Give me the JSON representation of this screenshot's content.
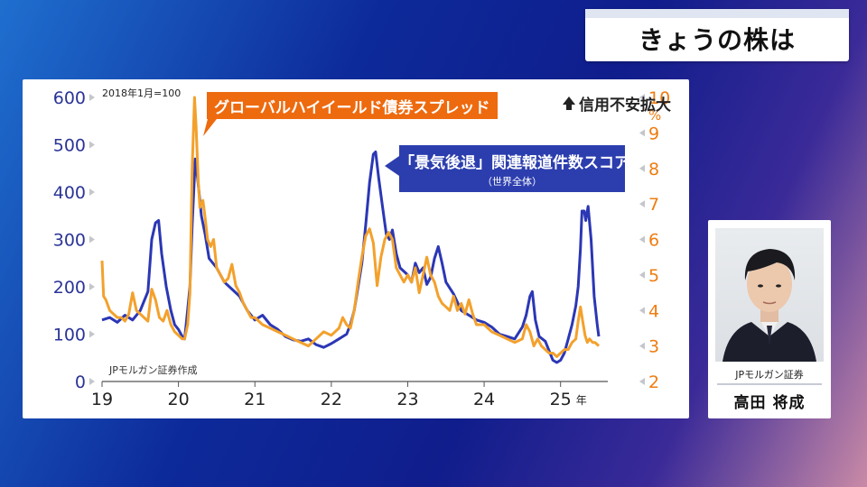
{
  "header": {
    "title": "きょうの株は"
  },
  "chart_labels": {
    "orange_series": "グローバルハイイールド債券スプレッド",
    "blue_series_line1": "「景気後退」関連報道件数スコア",
    "blue_series_line2": "（世界全体）",
    "right_axis_note": "信用不安拡大",
    "base_note": "2018年1月=100",
    "source": "JPモルガン証券作成",
    "right_unit": "%",
    "x_unit": "年"
  },
  "person": {
    "org": "JPモルガン証券",
    "name": "高田 将成"
  },
  "chart_data": {
    "type": "line",
    "x_ticks": [
      "19",
      "20",
      "21",
      "22",
      "23",
      "24",
      "25"
    ],
    "left_ticks": [
      0,
      100,
      200,
      300,
      400,
      500,
      600
    ],
    "right_ticks": [
      2,
      3,
      4,
      5,
      6,
      7,
      8,
      9,
      10
    ],
    "left_ylim": [
      0,
      600
    ],
    "right_ylim": [
      2,
      10
    ],
    "xlim": [
      2019.0,
      2025.5
    ],
    "colors": {
      "left_axis": "#2a3497",
      "right_axis": "#ee7d12",
      "blue_line": "#2b37b5",
      "orange_line": "#f3a12c"
    },
    "series": [
      {
        "name": "「景気後退」関連報道件数スコア",
        "axis": "left",
        "points": [
          [
            2019.0,
            130
          ],
          [
            2019.1,
            135
          ],
          [
            2019.2,
            125
          ],
          [
            2019.3,
            140
          ],
          [
            2019.4,
            130
          ],
          [
            2019.5,
            150
          ],
          [
            2019.6,
            190
          ],
          [
            2019.65,
            300
          ],
          [
            2019.7,
            335
          ],
          [
            2019.74,
            340
          ],
          [
            2019.78,
            270
          ],
          [
            2019.84,
            200
          ],
          [
            2019.9,
            150
          ],
          [
            2019.95,
            120
          ],
          [
            2020.0,
            110
          ],
          [
            2020.05,
            95
          ],
          [
            2020.08,
            90
          ],
          [
            2020.1,
            120
          ],
          [
            2020.15,
            200
          ],
          [
            2020.18,
            330
          ],
          [
            2020.22,
            470
          ],
          [
            2020.25,
            430
          ],
          [
            2020.3,
            350
          ],
          [
            2020.35,
            310
          ],
          [
            2020.4,
            260
          ],
          [
            2020.5,
            240
          ],
          [
            2020.6,
            210
          ],
          [
            2020.7,
            195
          ],
          [
            2020.8,
            180
          ],
          [
            2020.9,
            150
          ],
          [
            2021.0,
            130
          ],
          [
            2021.1,
            140
          ],
          [
            2021.2,
            120
          ],
          [
            2021.3,
            110
          ],
          [
            2021.4,
            95
          ],
          [
            2021.5,
            88
          ],
          [
            2021.6,
            85
          ],
          [
            2021.7,
            90
          ],
          [
            2021.8,
            78
          ],
          [
            2021.9,
            72
          ],
          [
            2022.0,
            80
          ],
          [
            2022.1,
            90
          ],
          [
            2022.2,
            100
          ],
          [
            2022.25,
            120
          ],
          [
            2022.3,
            150
          ],
          [
            2022.35,
            200
          ],
          [
            2022.4,
            250
          ],
          [
            2022.45,
            330
          ],
          [
            2022.5,
            420
          ],
          [
            2022.55,
            480
          ],
          [
            2022.58,
            485
          ],
          [
            2022.62,
            430
          ],
          [
            2022.67,
            370
          ],
          [
            2022.72,
            310
          ],
          [
            2022.76,
            300
          ],
          [
            2022.8,
            320
          ],
          [
            2022.85,
            270
          ],
          [
            2022.9,
            240
          ],
          [
            2023.0,
            225
          ],
          [
            2023.05,
            210
          ],
          [
            2023.1,
            250
          ],
          [
            2023.15,
            230
          ],
          [
            2023.2,
            240
          ],
          [
            2023.25,
            205
          ],
          [
            2023.3,
            220
          ],
          [
            2023.35,
            260
          ],
          [
            2023.4,
            285
          ],
          [
            2023.45,
            250
          ],
          [
            2023.5,
            210
          ],
          [
            2023.6,
            185
          ],
          [
            2023.7,
            150
          ],
          [
            2023.8,
            140
          ],
          [
            2023.9,
            130
          ],
          [
            2024.0,
            125
          ],
          [
            2024.1,
            115
          ],
          [
            2024.2,
            100
          ],
          [
            2024.3,
            95
          ],
          [
            2024.4,
            90
          ],
          [
            2024.5,
            115
          ],
          [
            2024.55,
            140
          ],
          [
            2024.6,
            180
          ],
          [
            2024.63,
            190
          ],
          [
            2024.67,
            130
          ],
          [
            2024.72,
            95
          ],
          [
            2024.8,
            85
          ],
          [
            2024.85,
            65
          ],
          [
            2024.9,
            45
          ],
          [
            2024.95,
            40
          ],
          [
            2025.0,
            45
          ],
          [
            2025.05,
            60
          ],
          [
            2025.1,
            90
          ],
          [
            2025.15,
            120
          ],
          [
            2025.2,
            160
          ],
          [
            2025.23,
            200
          ],
          [
            2025.26,
            280
          ],
          [
            2025.28,
            360
          ],
          [
            2025.31,
            360
          ],
          [
            2025.33,
            340
          ],
          [
            2025.36,
            370
          ],
          [
            2025.4,
            300
          ],
          [
            2025.44,
            180
          ],
          [
            2025.48,
            120
          ],
          [
            2025.5,
            95
          ]
        ]
      },
      {
        "name": "グローバルハイイールド債券スプレッド",
        "axis": "right",
        "points": [
          [
            2019.0,
            5.4
          ],
          [
            2019.02,
            4.4
          ],
          [
            2019.05,
            4.3
          ],
          [
            2019.1,
            4.0
          ],
          [
            2019.15,
            3.9
          ],
          [
            2019.2,
            3.8
          ],
          [
            2019.25,
            3.8
          ],
          [
            2019.3,
            3.7
          ],
          [
            2019.35,
            3.9
          ],
          [
            2019.4,
            4.5
          ],
          [
            2019.45,
            4.0
          ],
          [
            2019.5,
            3.9
          ],
          [
            2019.55,
            3.8
          ],
          [
            2019.6,
            3.7
          ],
          [
            2019.65,
            4.6
          ],
          [
            2019.7,
            4.3
          ],
          [
            2019.75,
            3.8
          ],
          [
            2019.8,
            3.7
          ],
          [
            2019.85,
            4.0
          ],
          [
            2019.9,
            3.6
          ],
          [
            2019.95,
            3.4
          ],
          [
            2020.0,
            3.3
          ],
          [
            2020.05,
            3.2
          ],
          [
            2020.08,
            3.2
          ],
          [
            2020.12,
            3.6
          ],
          [
            2020.15,
            4.5
          ],
          [
            2020.18,
            8.0
          ],
          [
            2020.21,
            10.0
          ],
          [
            2020.23,
            9.2
          ],
          [
            2020.26,
            7.6
          ],
          [
            2020.28,
            6.9
          ],
          [
            2020.32,
            7.1
          ],
          [
            2020.35,
            6.6
          ],
          [
            2020.38,
            6.0
          ],
          [
            2020.42,
            5.8
          ],
          [
            2020.46,
            6.0
          ],
          [
            2020.5,
            5.2
          ],
          [
            2020.55,
            5.0
          ],
          [
            2020.6,
            4.8
          ],
          [
            2020.65,
            4.9
          ],
          [
            2020.7,
            5.3
          ],
          [
            2020.75,
            4.7
          ],
          [
            2020.8,
            4.5
          ],
          [
            2020.85,
            4.2
          ],
          [
            2020.9,
            4.0
          ],
          [
            2020.95,
            3.8
          ],
          [
            2021.0,
            3.8
          ],
          [
            2021.1,
            3.6
          ],
          [
            2021.2,
            3.5
          ],
          [
            2021.3,
            3.4
          ],
          [
            2021.4,
            3.3
          ],
          [
            2021.5,
            3.2
          ],
          [
            2021.6,
            3.1
          ],
          [
            2021.7,
            3.0
          ],
          [
            2021.8,
            3.2
          ],
          [
            2021.9,
            3.4
          ],
          [
            2022.0,
            3.3
          ],
          [
            2022.1,
            3.5
          ],
          [
            2022.15,
            3.8
          ],
          [
            2022.2,
            3.6
          ],
          [
            2022.25,
            3.5
          ],
          [
            2022.3,
            4.0
          ],
          [
            2022.35,
            4.8
          ],
          [
            2022.4,
            5.5
          ],
          [
            2022.45,
            6.1
          ],
          [
            2022.5,
            6.3
          ],
          [
            2022.55,
            5.9
          ],
          [
            2022.6,
            4.7
          ],
          [
            2022.65,
            5.5
          ],
          [
            2022.7,
            6.0
          ],
          [
            2022.75,
            6.2
          ],
          [
            2022.8,
            6.0
          ],
          [
            2022.85,
            5.2
          ],
          [
            2022.9,
            5.0
          ],
          [
            2022.95,
            4.8
          ],
          [
            2023.0,
            5.0
          ],
          [
            2023.05,
            4.8
          ],
          [
            2023.1,
            5.2
          ],
          [
            2023.15,
            4.5
          ],
          [
            2023.2,
            5.0
          ],
          [
            2023.25,
            5.5
          ],
          [
            2023.3,
            5.0
          ],
          [
            2023.35,
            4.8
          ],
          [
            2023.4,
            4.4
          ],
          [
            2023.45,
            4.2
          ],
          [
            2023.5,
            4.1
          ],
          [
            2023.55,
            4.0
          ],
          [
            2023.6,
            4.4
          ],
          [
            2023.65,
            4.0
          ],
          [
            2023.7,
            4.2
          ],
          [
            2023.75,
            3.9
          ],
          [
            2023.8,
            4.3
          ],
          [
            2023.85,
            3.9
          ],
          [
            2023.9,
            3.6
          ],
          [
            2024.0,
            3.6
          ],
          [
            2024.1,
            3.4
          ],
          [
            2024.2,
            3.3
          ],
          [
            2024.3,
            3.2
          ],
          [
            2024.4,
            3.1
          ],
          [
            2024.5,
            3.2
          ],
          [
            2024.55,
            3.6
          ],
          [
            2024.6,
            3.4
          ],
          [
            2024.65,
            3.0
          ],
          [
            2024.7,
            3.2
          ],
          [
            2024.75,
            3.0
          ],
          [
            2024.8,
            2.9
          ],
          [
            2024.85,
            2.8
          ],
          [
            2024.9,
            2.8
          ],
          [
            2024.95,
            2.7
          ],
          [
            2025.0,
            2.8
          ],
          [
            2025.05,
            2.9
          ],
          [
            2025.1,
            2.9
          ],
          [
            2025.15,
            3.1
          ],
          [
            2025.2,
            3.2
          ],
          [
            2025.23,
            3.7
          ],
          [
            2025.26,
            4.1
          ],
          [
            2025.29,
            3.7
          ],
          [
            2025.32,
            3.3
          ],
          [
            2025.35,
            3.1
          ],
          [
            2025.38,
            3.2
          ],
          [
            2025.42,
            3.1
          ],
          [
            2025.45,
            3.1
          ],
          [
            2025.5,
            3.0
          ]
        ]
      }
    ]
  }
}
